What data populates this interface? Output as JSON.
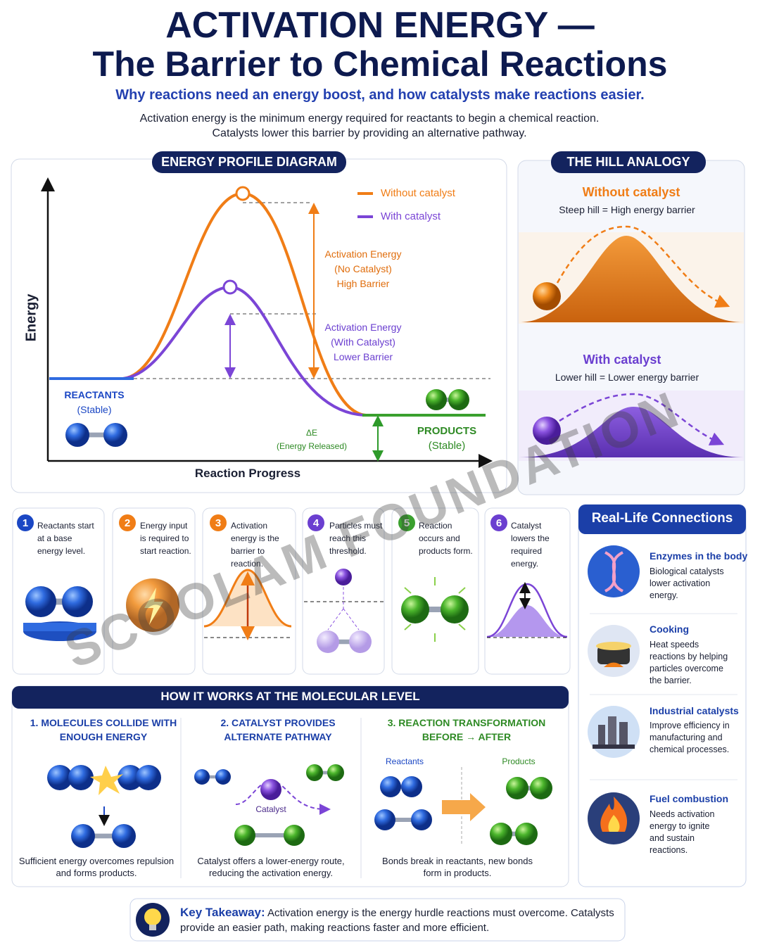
{
  "header": {
    "title_line1": "ACTIVATION ENERGY —",
    "title_line2": "The Barrier to Chemical Reactions",
    "subtitle": "Why reactions need an energy boost, and how catalysts make reactions easier.",
    "intro": [
      "Activation energy is the minimum energy required for reactants to begin a chemical reaction.",
      "Catalysts lower this barrier by providing an alternative pathway."
    ]
  },
  "energy_profile": {
    "heading": "ENERGY PROFILE DIAGRAM",
    "y_axis": "Energy",
    "x_axis": "Reaction Progress",
    "legend": [
      "Without catalyst",
      "With catalyst"
    ],
    "no_catalyst_label": [
      "Activation Energy",
      "(No Catalyst)",
      "High Barrier"
    ],
    "catalyst_label": [
      "Activation Energy",
      "(With Catalyst)",
      "Lower Barrier"
    ],
    "reactants": [
      "REACTANTS",
      "(Stable)"
    ],
    "products": [
      "PRODUCTS",
      "(Stable)"
    ],
    "delta_e": [
      "ΔE",
      "(Energy Released)"
    ]
  },
  "hill_analogy": {
    "heading": "THE HILL ANALOGY",
    "without": {
      "title": "Without catalyst",
      "text": "Steep hill = High energy barrier"
    },
    "with": {
      "title": "With catalyst",
      "text": "Lower hill = Lower energy barrier"
    }
  },
  "steps": [
    {
      "number": "1",
      "text": "Reactants start at a base energy level."
    },
    {
      "number": "2",
      "text": "Energy input is required to start reaction."
    },
    {
      "number": "3",
      "text": "Activation energy is the barrier to reaction."
    },
    {
      "number": "4",
      "text": "Particles must reach this threshold."
    },
    {
      "number": "5",
      "text": "Reaction occurs and products form."
    },
    {
      "number": "6",
      "text": "Catalyst lowers the required energy."
    }
  ],
  "molecular": {
    "heading": "HOW IT WORKS AT THE MOLECULAR LEVEL",
    "columns": [
      {
        "title": "1. MOLECULES COLLIDE WITH ENOUGH ENERGY",
        "caption": "Sufficient energy overcomes repulsion and forms products."
      },
      {
        "title": "2. CATALYST PROVIDES ALTERNATE PATHWAY",
        "caption": "Catalyst offers a lower-energy route, reducing the activation energy.",
        "label": "Catalyst"
      },
      {
        "title": "3. REACTION TRANSFORMATION",
        "subtitle": "BEFORE → AFTER",
        "caption": "Bonds break in reactants, new bonds form in products.",
        "reactants": "Reactants",
        "products": "Products"
      }
    ]
  },
  "real_life": {
    "heading": "Real-Life Connections",
    "items": [
      {
        "title": "Enzymes in the body",
        "text": "Biological catalysts lower activation energy."
      },
      {
        "title": "Cooking",
        "text": "Heat speeds reactions by helping particles overcome the barrier."
      },
      {
        "title": "Industrial catalysts",
        "text": "Improve efficiency in manufacturing and chemical processes."
      },
      {
        "title": "Fuel combustion",
        "text": "Needs activation energy to ignite and sustain reactions."
      }
    ]
  },
  "takeaway": {
    "label": "Key Takeaway:",
    "text": "Activation energy is the energy hurdle reactions must overcome. Catalysts provide an easier path, making reactions faster and more efficient."
  },
  "watermark": "SCOOLAM FOUNDATION"
}
